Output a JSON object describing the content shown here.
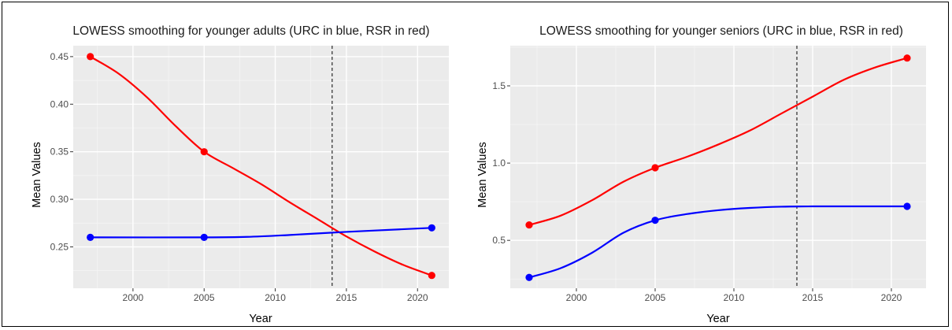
{
  "chart_data": [
    {
      "type": "line",
      "title": "LOWESS smoothing for younger adults (URC in blue, RSR in red)",
      "xlabel": "Year",
      "ylabel": "Mean Values",
      "xlim": [
        1995.8,
        2022.2
      ],
      "ylim": [
        0.2065,
        0.4615
      ],
      "xticks": [
        2000,
        2005,
        2010,
        2015,
        2020
      ],
      "xtick_labels": [
        "2000",
        "2005",
        "2010",
        "2015",
        "2020"
      ],
      "yticks": [
        0.25,
        0.3,
        0.35,
        0.4,
        0.45
      ],
      "ytick_labels": [
        "0.25",
        "0.30",
        "0.35",
        "0.40",
        "0.45"
      ],
      "vline_x": 2014,
      "grid": true,
      "series": [
        {
          "color": "#ff0000",
          "points": [
            [
              1997,
              0.45
            ],
            [
              2005,
              0.35
            ],
            [
              2021,
              0.22
            ]
          ],
          "curve": [
            [
              1997,
              0.45
            ],
            [
              1999,
              0.432
            ],
            [
              2001,
              0.407
            ],
            [
              2003,
              0.377
            ],
            [
              2005,
              0.35
            ],
            [
              2007,
              0.333
            ],
            [
              2009,
              0.316
            ],
            [
              2011,
              0.297
            ],
            [
              2013,
              0.279
            ],
            [
              2015,
              0.261
            ],
            [
              2017,
              0.245
            ],
            [
              2019,
              0.231
            ],
            [
              2021,
              0.22
            ]
          ]
        },
        {
          "color": "#0000ff",
          "points": [
            [
              1997,
              0.26
            ],
            [
              2005,
              0.26
            ],
            [
              2021,
              0.27
            ]
          ],
          "curve": [
            [
              1997,
              0.26
            ],
            [
              2005,
              0.26
            ],
            [
              2008,
              0.2605
            ],
            [
              2011,
              0.2625
            ],
            [
              2014,
              0.265
            ],
            [
              2017,
              0.2672
            ],
            [
              2021,
              0.27
            ]
          ]
        }
      ]
    },
    {
      "type": "line",
      "title": "LOWESS smoothing for younger seniors (URC in blue, RSR in red)",
      "xlabel": "Year",
      "ylabel": "Mean Values",
      "xlim": [
        1995.8,
        2022.2
      ],
      "ylim": [
        0.19,
        1.76
      ],
      "xticks": [
        2000,
        2005,
        2010,
        2015,
        2020
      ],
      "xtick_labels": [
        "2000",
        "2005",
        "2010",
        "2015",
        "2020"
      ],
      "yticks": [
        0.5,
        1.0,
        1.5
      ],
      "ytick_labels": [
        "0.5",
        "1.0",
        "1.5"
      ],
      "vline_x": 2014,
      "grid": true,
      "series": [
        {
          "color": "#ff0000",
          "points": [
            [
              1997,
              0.6
            ],
            [
              2005,
              0.97
            ],
            [
              2021,
              1.68
            ]
          ],
          "curve": [
            [
              1997,
              0.6
            ],
            [
              1999,
              0.66
            ],
            [
              2001,
              0.76
            ],
            [
              2003,
              0.88
            ],
            [
              2005,
              0.97
            ],
            [
              2007,
              1.04
            ],
            [
              2009,
              1.12
            ],
            [
              2011,
              1.21
            ],
            [
              2013,
              1.32
            ],
            [
              2015,
              1.43
            ],
            [
              2017,
              1.54
            ],
            [
              2019,
              1.62
            ],
            [
              2021,
              1.68
            ]
          ]
        },
        {
          "color": "#0000ff",
          "points": [
            [
              1997,
              0.26
            ],
            [
              2005,
              0.63
            ],
            [
              2021,
              0.72
            ]
          ],
          "curve": [
            [
              1997,
              0.26
            ],
            [
              1999,
              0.32
            ],
            [
              2001,
              0.42
            ],
            [
              2003,
              0.55
            ],
            [
              2005,
              0.63
            ],
            [
              2007,
              0.67
            ],
            [
              2009,
              0.695
            ],
            [
              2011,
              0.71
            ],
            [
              2013,
              0.718
            ],
            [
              2015,
              0.72
            ],
            [
              2018,
              0.72
            ],
            [
              2021,
              0.72
            ]
          ]
        }
      ]
    }
  ]
}
